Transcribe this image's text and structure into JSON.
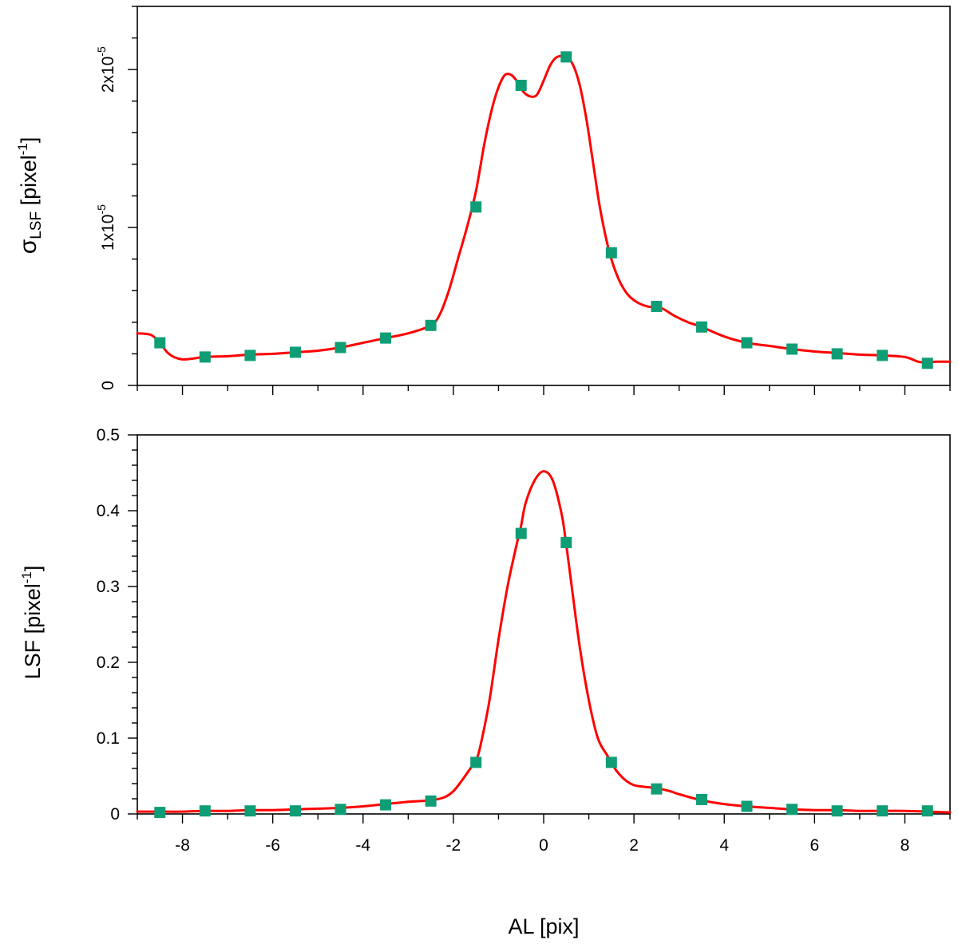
{
  "chart_data": [
    {
      "type": "line",
      "title": "",
      "xlabel": "",
      "ylabel_main": "σ",
      "ylabel_sub": "LSF",
      "ylabel_unit": " [pixel",
      "ylabel_sup": "-1",
      "ylabel_close": "]",
      "xlim": [
        -9,
        9
      ],
      "ylim": [
        0,
        2.4e-05
      ],
      "grid": false,
      "xticks": [
        -8,
        -6,
        -4,
        -2,
        0,
        2,
        4,
        6,
        8
      ],
      "x_tick_labels_shown": false,
      "yticks": [
        {
          "value": 0,
          "label": "0",
          "mantissa": "0",
          "exponent": ""
        },
        {
          "value": 1e-05,
          "label": "1x10-5",
          "mantissa": "1x10",
          "exponent": "-5"
        },
        {
          "value": 2e-05,
          "label": "2x10-5",
          "mantissa": "2x10",
          "exponent": "-5"
        }
      ],
      "series": [
        {
          "name": "sigma LSF curve",
          "color": "#ff0000",
          "style": "line",
          "x": [
            -9.0,
            -8.7,
            -8.5,
            -8.3,
            -8.0,
            -7.5,
            -7.0,
            -6.5,
            -6.0,
            -5.5,
            -5.0,
            -4.5,
            -4.0,
            -3.5,
            -3.0,
            -2.5,
            -2.3,
            -2.1,
            -1.9,
            -1.7,
            -1.5,
            -1.3,
            -1.1,
            -0.9,
            -0.75,
            -0.6,
            -0.45,
            -0.3,
            -0.15,
            0.0,
            0.15,
            0.3,
            0.5,
            0.65,
            0.8,
            0.95,
            1.1,
            1.25,
            1.45,
            1.65,
            1.85,
            2.05,
            2.3,
            2.6,
            2.9,
            3.2,
            3.5,
            4.0,
            4.5,
            5.0,
            5.5,
            6.0,
            6.5,
            7.0,
            7.5,
            8.0,
            8.3,
            8.5,
            8.7,
            9.0
          ],
          "y": [
            3.3e-06,
            3.2e-06,
            2.7e-06,
            2e-06,
            1.65e-06,
            1.8e-06,
            1.85e-06,
            1.95e-06,
            2e-06,
            2.1e-06,
            2.2e-06,
            2.4e-06,
            2.7e-06,
            3e-06,
            3.3e-06,
            3.8e-06,
            4.5e-06,
            6e-06,
            8e-06,
            1e-05,
            1.23e-05,
            1.55e-05,
            1.8e-05,
            1.95e-05,
            1.97e-05,
            1.93e-05,
            1.86e-05,
            1.83e-05,
            1.84e-05,
            1.93e-05,
            2.03e-05,
            2.08e-05,
            2.08e-05,
            2.03e-05,
            1.9e-05,
            1.68e-05,
            1.4e-05,
            1.12e-05,
            8.5e-06,
            6.8e-06,
            5.8e-06,
            5.3e-06,
            5e-06,
            4.9e-06,
            4.4e-06,
            4e-06,
            3.7e-06,
            3.1e-06,
            2.7e-06,
            2.5e-06,
            2.3e-06,
            2.15e-06,
            2.05e-06,
            1.95e-06,
            1.9e-06,
            1.8e-06,
            1.5e-06,
            1.45e-06,
            1.5e-06,
            1.5e-06
          ]
        },
        {
          "name": "sigma LSF samples",
          "color": "#0f9d76",
          "style": "markers",
          "x": [
            -8.5,
            -7.5,
            -6.5,
            -5.5,
            -4.5,
            -3.5,
            -2.5,
            -1.5,
            -0.5,
            0.5,
            1.5,
            2.5,
            3.5,
            4.5,
            5.5,
            6.5,
            7.5,
            8.5
          ],
          "y": [
            2.7e-06,
            1.8e-06,
            1.9e-06,
            2.1e-06,
            2.4e-06,
            3e-06,
            3.8e-06,
            1.13e-05,
            1.9e-05,
            2.08e-05,
            8.4e-06,
            5e-06,
            3.7e-06,
            2.7e-06,
            2.3e-06,
            2e-06,
            1.9e-06,
            1.4e-06
          ]
        }
      ]
    },
    {
      "type": "line",
      "title": "",
      "xlabel": "AL [pix]",
      "ylabel_main": "LSF",
      "ylabel_sub": "",
      "ylabel_unit": " [pixel",
      "ylabel_sup": "-1",
      "ylabel_close": "]",
      "xlim": [
        -9,
        9
      ],
      "ylim": [
        0,
        0.5
      ],
      "grid": false,
      "xticks": [
        -8,
        -6,
        -4,
        -2,
        0,
        2,
        4,
        6,
        8
      ],
      "x_tick_labels": [
        "-8",
        "-6",
        "-4",
        "-2",
        "0",
        "2",
        "4",
        "6",
        "8"
      ],
      "x_tick_labels_shown": true,
      "yticks": [
        {
          "value": 0,
          "label": "0"
        },
        {
          "value": 0.1,
          "label": "0.1"
        },
        {
          "value": 0.2,
          "label": "0.2"
        },
        {
          "value": 0.3,
          "label": "0.3"
        },
        {
          "value": 0.4,
          "label": "0.4"
        },
        {
          "value": 0.5,
          "label": "0.5"
        }
      ],
      "series": [
        {
          "name": "LSF curve",
          "color": "#ff0000",
          "style": "line",
          "x": [
            -9.0,
            -8.5,
            -8.0,
            -7.5,
            -7.0,
            -6.5,
            -6.0,
            -5.5,
            -5.0,
            -4.5,
            -4.0,
            -3.5,
            -3.0,
            -2.5,
            -2.2,
            -2.0,
            -1.8,
            -1.6,
            -1.5,
            -1.4,
            -1.2,
            -1.0,
            -0.8,
            -0.6,
            -0.5,
            -0.4,
            -0.2,
            0.0,
            0.2,
            0.4,
            0.5,
            0.6,
            0.8,
            1.0,
            1.2,
            1.4,
            1.5,
            1.6,
            1.8,
            2.0,
            2.2,
            2.5,
            2.8,
            3.0,
            3.5,
            4.0,
            4.5,
            5.0,
            5.5,
            6.0,
            6.5,
            7.0,
            7.5,
            8.0,
            8.5,
            9.0
          ],
          "y": [
            0.003,
            0.003,
            0.003,
            0.004,
            0.004,
            0.005,
            0.005,
            0.006,
            0.007,
            0.008,
            0.01,
            0.013,
            0.016,
            0.018,
            0.022,
            0.03,
            0.045,
            0.062,
            0.07,
            0.09,
            0.15,
            0.23,
            0.3,
            0.355,
            0.38,
            0.41,
            0.44,
            0.452,
            0.44,
            0.395,
            0.355,
            0.31,
            0.22,
            0.15,
            0.1,
            0.078,
            0.068,
            0.058,
            0.045,
            0.038,
            0.036,
            0.034,
            0.03,
            0.026,
            0.018,
            0.013,
            0.01,
            0.008,
            0.006,
            0.005,
            0.005,
            0.004,
            0.004,
            0.004,
            0.003,
            0.002
          ]
        },
        {
          "name": "LSF samples",
          "color": "#0f9d76",
          "style": "markers",
          "x": [
            -8.5,
            -7.5,
            -6.5,
            -5.5,
            -4.5,
            -3.5,
            -2.5,
            -1.5,
            -0.5,
            0.5,
            1.5,
            2.5,
            3.5,
            4.5,
            5.5,
            6.5,
            7.5,
            8.5
          ],
          "y": [
            0.002,
            0.004,
            0.004,
            0.004,
            0.006,
            0.012,
            0.017,
            0.068,
            0.37,
            0.358,
            0.068,
            0.033,
            0.019,
            0.01,
            0.006,
            0.004,
            0.004,
            0.004
          ]
        }
      ]
    }
  ]
}
